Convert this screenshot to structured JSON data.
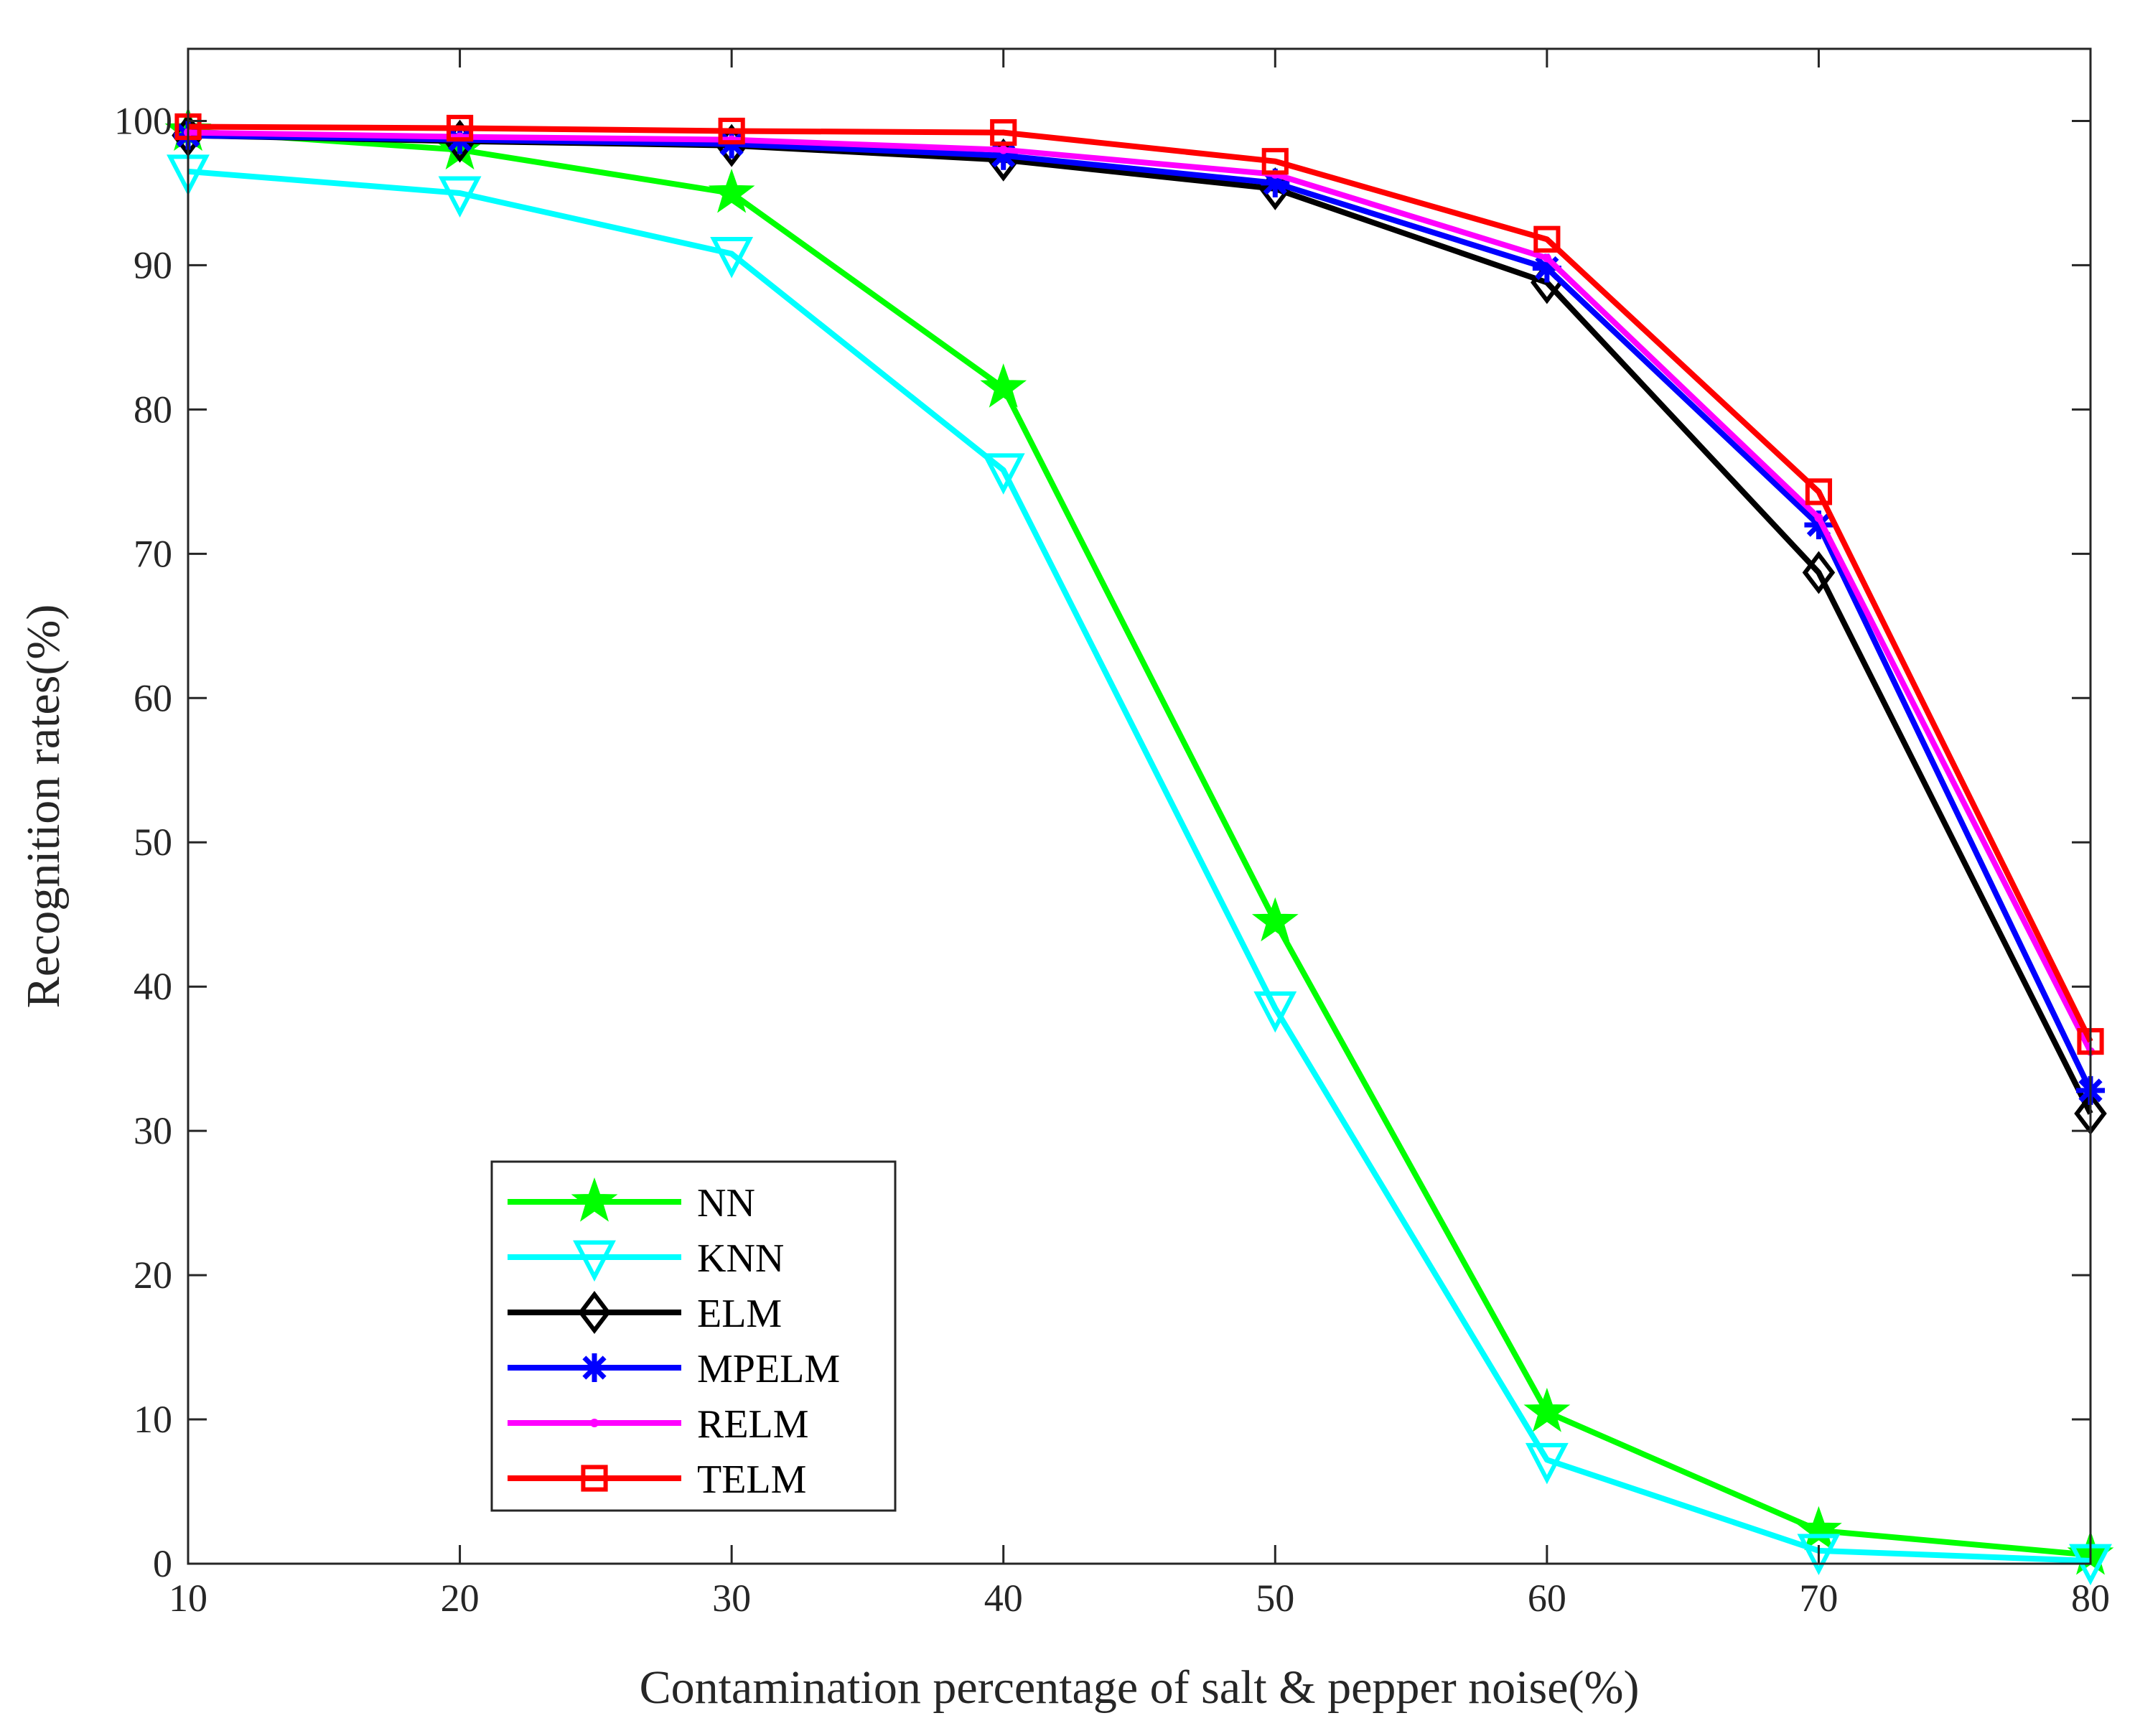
{
  "chart_data": {
    "type": "line",
    "title": "",
    "xlabel": "Contamination percentage of salt & pepper noise(%)",
    "ylabel": "Recognition rates(%)",
    "x": [
      10,
      20,
      30,
      40,
      50,
      60,
      70,
      80
    ],
    "xlim": [
      10,
      80
    ],
    "ylim": [
      0,
      105
    ],
    "xticks": [
      "10",
      "20",
      "30",
      "40",
      "50",
      "60",
      "70",
      "80"
    ],
    "yticks": [
      "0",
      "10",
      "20",
      "30",
      "40",
      "50",
      "60",
      "70",
      "80",
      "90",
      "100"
    ],
    "grid": false,
    "legend_position": "lower-left",
    "series": [
      {
        "name": "NN",
        "color": "#00ff00",
        "marker": "pentagram",
        "values": [
          99.3,
          98.0,
          95.0,
          81.5,
          44.5,
          10.5,
          2.3,
          0.6
        ]
      },
      {
        "name": "KNN",
        "color": "#00ffff",
        "marker": "triangle-down",
        "values": [
          96.5,
          95.0,
          90.8,
          75.8,
          38.5,
          7.2,
          0.9,
          0.2
        ]
      },
      {
        "name": "ELM",
        "color": "#000000",
        "marker": "diamond",
        "values": [
          99.0,
          98.6,
          98.3,
          97.3,
          95.3,
          88.8,
          68.7,
          31.2
        ]
      },
      {
        "name": "MPELM",
        "color": "#0000ff",
        "marker": "asterisk",
        "values": [
          99.0,
          98.7,
          98.4,
          97.6,
          95.7,
          89.8,
          72.0,
          32.8
        ]
      },
      {
        "name": "RELM",
        "color": "#ff00ff",
        "marker": "point",
        "values": [
          99.2,
          98.9,
          98.7,
          98.0,
          96.3,
          90.5,
          72.5,
          35.5
        ]
      },
      {
        "name": "TELM",
        "color": "#ff0000",
        "marker": "square",
        "values": [
          99.6,
          99.5,
          99.3,
          99.2,
          97.2,
          91.8,
          74.3,
          36.2
        ]
      }
    ]
  }
}
